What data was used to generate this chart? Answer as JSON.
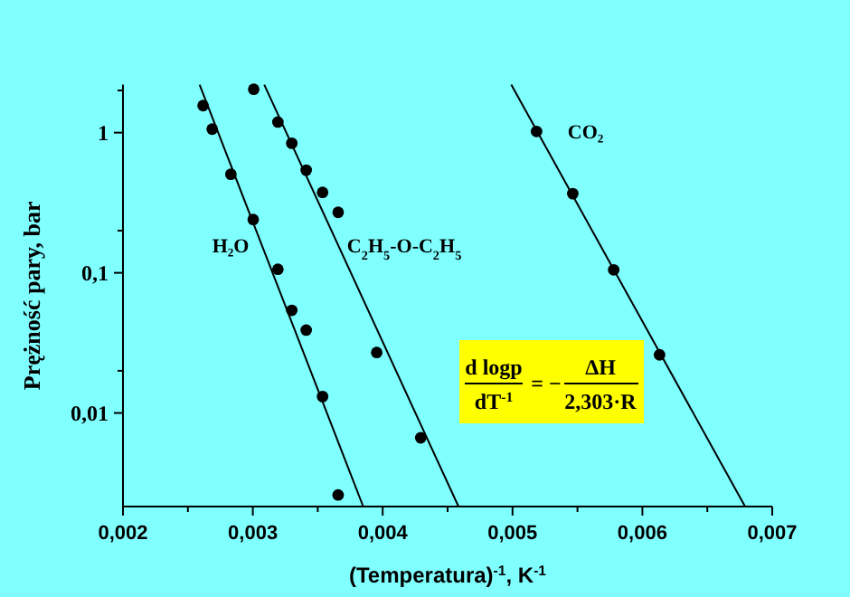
{
  "chart_data": {
    "type": "scatter",
    "xlabel": "(Temperatura)$^{-1}$, K$^{-1}$",
    "ylabel": "Prężność pary, bar",
    "log": "y",
    "grid": false,
    "legend": false,
    "xlim": [
      0.002,
      0.007
    ],
    "ylim": [
      0.00215,
      2.2
    ],
    "xticks": [
      {
        "value": 0.002,
        "label": "0,002"
      },
      {
        "value": 0.0025,
        "label": null
      },
      {
        "value": 0.003,
        "label": "0,003"
      },
      {
        "value": 0.0035,
        "label": null
      },
      {
        "value": 0.004,
        "label": "0,004"
      },
      {
        "value": 0.0045,
        "label": null
      },
      {
        "value": 0.005,
        "label": "0,005"
      },
      {
        "value": 0.0055,
        "label": null
      },
      {
        "value": 0.006,
        "label": "0,006"
      },
      {
        "value": 0.0065,
        "label": null
      },
      {
        "value": 0.007,
        "label": "0,007"
      }
    ],
    "yticks": [
      {
        "value": 0.01,
        "label": "0,01"
      },
      {
        "value": 0.02,
        "label": null
      },
      {
        "value": 0.1,
        "label": "0,1"
      },
      {
        "value": 0.2,
        "label": null
      },
      {
        "value": 1,
        "label": "1"
      },
      {
        "value": 2,
        "label": null
      }
    ],
    "series": [
      {
        "marker": "circle",
        "color": "#000000",
        "x": [
          0.002617,
          0.002687,
          0.002831,
          0.003003,
          0.003193,
          0.0033,
          0.003411,
          0.003537,
          0.003657
        ],
        "values": [
          1.56,
          1.06,
          0.505,
          0.24,
          0.106,
          0.054,
          0.039,
          0.0131,
          0.0026
        ]
      },
      {
        "type": "line",
        "name": "H₂O",
        "marker": "none",
        "color": "#000000",
        "line_style": "solid",
        "x": [
          0.00259,
          0.00385
        ],
        "values": [
          2.2,
          0.00215
        ]
      },
      {
        "marker": "circle",
        "color": "#000000",
        "x": [
          0.003007,
          0.003193,
          0.0033,
          0.003411,
          0.003537,
          0.003657,
          0.003954,
          0.004293
        ],
        "values": [
          2.04,
          1.19,
          0.84,
          0.54,
          0.375,
          0.27,
          0.027,
          0.00665
        ]
      },
      {
        "type": "line",
        "name": "C$_{2}$H$_{5}$-O-C$_{2}$H$_{5}$",
        "marker": "none",
        "color": "#000000",
        "line_style": "solid",
        "x": [
          0.003088,
          0.004584
        ],
        "values": [
          2.2,
          0.00215
        ]
      },
      {
        "marker": "circle",
        "color": "#000000",
        "x": [
          0.005185,
          0.005464,
          0.005779,
          0.006132
        ],
        "values": [
          1.02,
          0.367,
          0.105,
          0.026
        ]
      },
      {
        "type": "line",
        "name": "CO₂",
        "marker": "none",
        "color": "#000000",
        "line_style": "solid",
        "x": [
          0.00499,
          0.006791
        ],
        "values": [
          2.2,
          0.00215
        ]
      }
    ],
    "annotations": [
      "d logp",
      "dT$^{-1}$",
      "= −",
      "ΔH",
      "2,303·R"
    ]
  }
}
